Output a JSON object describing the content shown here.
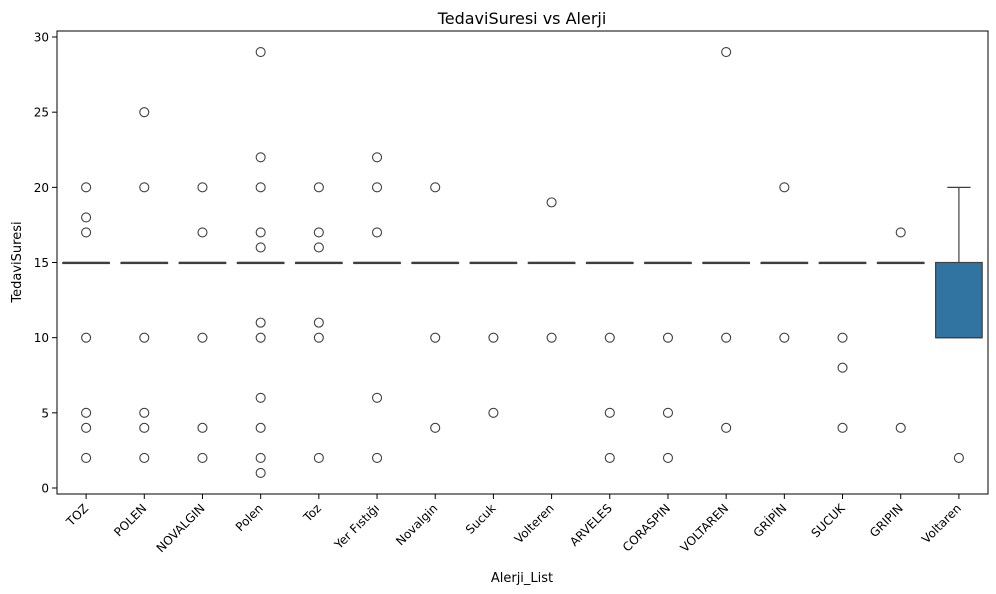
{
  "chart_data": {
    "type": "box",
    "title": "TedaviSuresi vs Alerji",
    "xlabel": "Alerji_List",
    "ylabel": "TedaviSuresi",
    "ylim": [
      -0.4,
      30.4
    ],
    "yticks": [
      0,
      5,
      10,
      15,
      20,
      25,
      30
    ],
    "grid": false,
    "box_color": "#3274a1",
    "line_color": "#3f3f3f",
    "categories": [
      "TOZ",
      "POLEN",
      "NOVALGIN",
      "Polen",
      "Toz",
      "Yer Fıstığı",
      "Novalgin",
      "Sucuk",
      "Volteren",
      "ARVELES",
      "CORASPIN",
      "VOLTAREN",
      "GRİPİN",
      "SUCUK",
      "GRIPIN",
      "Voltaren"
    ],
    "boxes": [
      {
        "category": "TOZ",
        "q1": 15,
        "median": 15,
        "q3": 15,
        "whislo": 15,
        "whishi": 15,
        "fliers": [
          20,
          18,
          17,
          10,
          5,
          4,
          2
        ]
      },
      {
        "category": "POLEN",
        "q1": 15,
        "median": 15,
        "q3": 15,
        "whislo": 15,
        "whishi": 15,
        "fliers": [
          25,
          20,
          10,
          5,
          4,
          2
        ]
      },
      {
        "category": "NOVALGIN",
        "q1": 15,
        "median": 15,
        "q3": 15,
        "whislo": 15,
        "whishi": 15,
        "fliers": [
          20,
          17,
          10,
          4,
          2
        ]
      },
      {
        "category": "Polen",
        "q1": 15,
        "median": 15,
        "q3": 15,
        "whislo": 15,
        "whishi": 15,
        "fliers": [
          29,
          22,
          20,
          17,
          16,
          11,
          10,
          6,
          4,
          2,
          1
        ]
      },
      {
        "category": "Toz",
        "q1": 15,
        "median": 15,
        "q3": 15,
        "whislo": 15,
        "whishi": 15,
        "fliers": [
          20,
          17,
          16,
          11,
          10,
          2
        ]
      },
      {
        "category": "Yer Fıstığı",
        "q1": 15,
        "median": 15,
        "q3": 15,
        "whislo": 15,
        "whishi": 15,
        "fliers": [
          22,
          20,
          17,
          6,
          2
        ]
      },
      {
        "category": "Novalgin",
        "q1": 15,
        "median": 15,
        "q3": 15,
        "whislo": 15,
        "whishi": 15,
        "fliers": [
          20,
          10,
          4
        ]
      },
      {
        "category": "Sucuk",
        "q1": 15,
        "median": 15,
        "q3": 15,
        "whislo": 15,
        "whishi": 15,
        "fliers": [
          10,
          5
        ]
      },
      {
        "category": "Volteren",
        "q1": 15,
        "median": 15,
        "q3": 15,
        "whislo": 15,
        "whishi": 15,
        "fliers": [
          19,
          10
        ]
      },
      {
        "category": "ARVELES",
        "q1": 15,
        "median": 15,
        "q3": 15,
        "whislo": 15,
        "whishi": 15,
        "fliers": [
          10,
          5,
          2
        ]
      },
      {
        "category": "CORASPIN",
        "q1": 15,
        "median": 15,
        "q3": 15,
        "whislo": 15,
        "whishi": 15,
        "fliers": [
          10,
          5,
          2
        ]
      },
      {
        "category": "VOLTAREN",
        "q1": 15,
        "median": 15,
        "q3": 15,
        "whislo": 15,
        "whishi": 15,
        "fliers": [
          29,
          10,
          4
        ]
      },
      {
        "category": "GRİPİN",
        "q1": 15,
        "median": 15,
        "q3": 15,
        "whislo": 15,
        "whishi": 15,
        "fliers": [
          20,
          10
        ]
      },
      {
        "category": "SUCUK",
        "q1": 15,
        "median": 15,
        "q3": 15,
        "whislo": 15,
        "whishi": 15,
        "fliers": [
          10,
          8,
          4
        ]
      },
      {
        "category": "GRIPIN",
        "q1": 15,
        "median": 15,
        "q3": 15,
        "whislo": 15,
        "whishi": 15,
        "fliers": [
          17,
          4
        ]
      },
      {
        "category": "Voltaren",
        "q1": 10,
        "median": 10,
        "q3": 15,
        "whislo": 10,
        "whishi": 20,
        "fliers": [
          2
        ]
      }
    ]
  }
}
